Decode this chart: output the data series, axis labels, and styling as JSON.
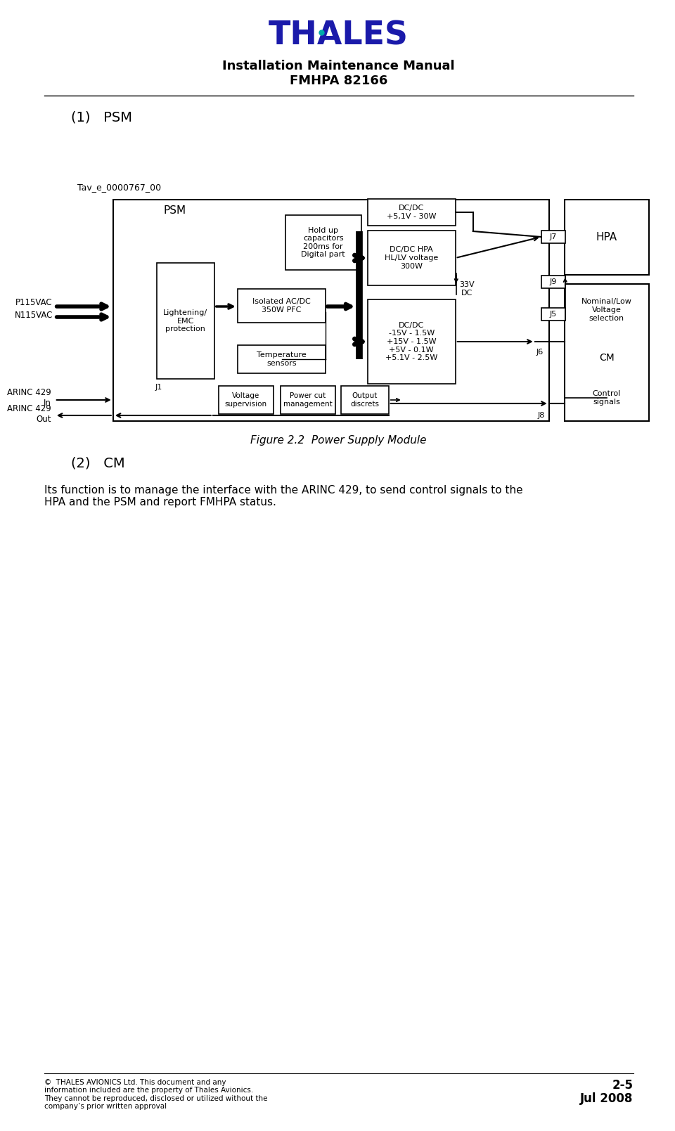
{
  "bg_color": "#ffffff",
  "title_line1": "Installation Maintenance Manual",
  "title_line2": "FMHPA 82166",
  "thales_text": "THALES",
  "section1_label": "(1)   PSM",
  "section2_label": "(2)   CM",
  "figure_caption": "Figure 2.2  Power Supply Module",
  "diagram_label": "Tav_e_0000767_00",
  "psm_label": "PSM",
  "hpa_label": "HPA",
  "cm_label": "CM",
  "footer_left": "©  THALES AVIONICS Ltd. This document and any\ninformation included are the property of Thales Avionics.\nThey cannot be reproduced, disclosed or utilized without the\ncompany’s prior written approval",
  "footer_right_line1": "2-5",
  "footer_right_line2": "Jul 2008",
  "body_text": "Its function is to manage the interface with the ARINC 429, to send control signals to the\nHPA and the PSM and report FMHPA status.",
  "box_lightening": "Lightening/\nEMC\nprotection",
  "box_isolated_ac": "Isolated AC/DC\n350W PFC",
  "box_hold_up": "Hold up\ncapacitors\n200ms for\nDigital part",
  "box_dc_dc_hpa": "DC/DC HPA\nHL/LV voltage\n300W",
  "box_dc_dc_plus51": "DC/DC\n+5,1V - 30W",
  "box_temperature": "Temperature\nsensors",
  "box_dc_dc_multi": "DC/DC\n-15V - 1.5W\n+15V - 1.5W\n+5V - 0.1W\n+5.1V - 2.5W",
  "box_voltage_sup": "Voltage\nsupervision",
  "box_power_cut": "Power cut\nmanagement",
  "box_output_discrets": "Output\ndiscrets",
  "box_nominal_low": "Nominal/Low\nVoltage\nselection",
  "box_control_signals": "Control\nsignals",
  "lbl_J1": "J1",
  "lbl_J5": "J5",
  "lbl_J6": "J6",
  "lbl_J7": "J7",
  "lbl_J8": "J8",
  "lbl_J9": "J9",
  "lbl_P115VAC": "P115VAC",
  "lbl_N115VAC": "N115VAC",
  "lbl_ARINC_in": "ARINC 429\nIn",
  "lbl_ARINC_out": "ARINC 429\nOut",
  "lbl_33VDC": "33V\nDC",
  "thales_color": "#1a1aaa",
  "thales_dot_color": "#00aaaa"
}
